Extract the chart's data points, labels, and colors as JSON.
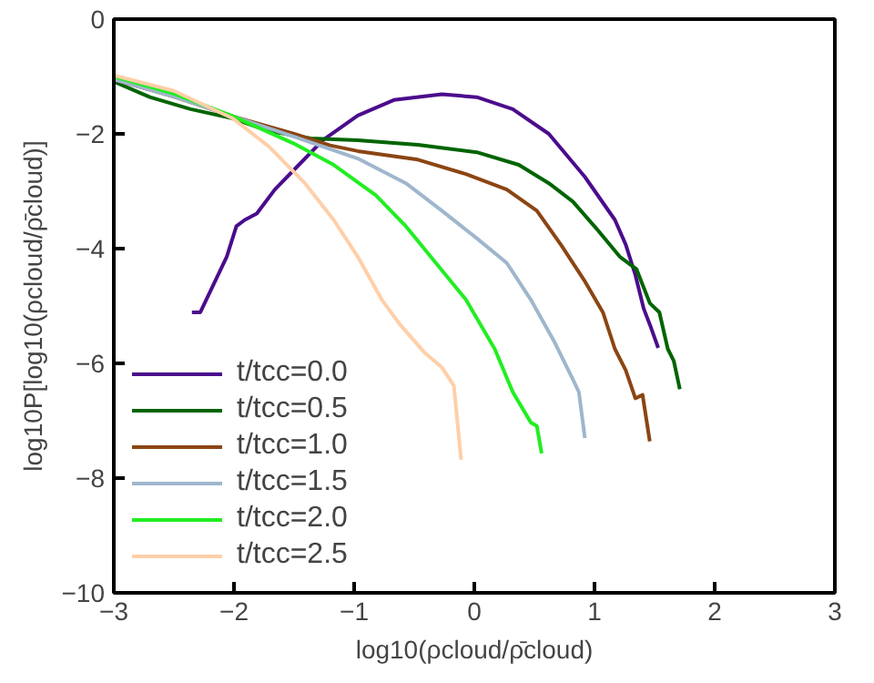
{
  "chart_data": {
    "type": "line",
    "xlabel": "log10(ρcloud/ρ̄cloud)",
    "ylabel": "log10P[log10(ρcloud/ρ̄cloud)]",
    "xlim": [
      -3,
      3
    ],
    "ylim": [
      -10,
      0
    ],
    "xticks": [
      -3,
      -2,
      -1,
      0,
      1,
      2,
      3
    ],
    "yticks": [
      -10,
      -8,
      -6,
      -4,
      -2,
      0
    ],
    "grid": false,
    "legend": "bottom left",
    "line_style": "solid",
    "series": [
      {
        "name": "t/tcc=0.0",
        "color": "#4b0c8c",
        "x": [
          -2.35,
          -2.28,
          -2.06,
          -1.98,
          -1.91,
          -1.81,
          -1.66,
          -1.46,
          -1.26,
          -0.97,
          -0.67,
          -0.27,
          0.02,
          0.32,
          0.62,
          0.92,
          1.17,
          1.26,
          1.34,
          1.41,
          1.46,
          1.53
        ],
        "values": [
          -5.11,
          -5.11,
          -4.14,
          -3.61,
          -3.5,
          -3.39,
          -2.97,
          -2.54,
          -2.11,
          -1.68,
          -1.41,
          -1.31,
          -1.36,
          -1.57,
          -2.0,
          -2.75,
          -3.5,
          -3.93,
          -4.46,
          -5.05,
          -5.32,
          -5.73
        ]
      },
      {
        "name": "t/tcc=0.5",
        "color": "#006400",
        "x": [
          -3,
          -2.7,
          -2.36,
          -2.01,
          -1.71,
          -1.36,
          -0.97,
          -0.47,
          0.02,
          0.37,
          0.62,
          0.82,
          1.02,
          1.21,
          1.35,
          1.46,
          1.54,
          1.61,
          1.66,
          1.71
        ],
        "values": [
          -1.09,
          -1.36,
          -1.57,
          -1.73,
          -1.95,
          -2.08,
          -2.11,
          -2.19,
          -2.32,
          -2.54,
          -2.86,
          -3.18,
          -3.66,
          -4.14,
          -4.36,
          -4.95,
          -5.11,
          -5.75,
          -5.96,
          -6.45
        ]
      },
      {
        "name": "t/tcc=1.0",
        "color": "#8b4513",
        "x": [
          -3,
          -2.5,
          -2,
          -1.5,
          -1.2,
          -0.97,
          -0.47,
          -0.07,
          0.27,
          0.52,
          0.72,
          0.92,
          1.07,
          1.17,
          1.26,
          1.34,
          1.4,
          1.46
        ],
        "values": [
          -1.05,
          -1.35,
          -1.7,
          -2.0,
          -2.2,
          -2.3,
          -2.45,
          -2.7,
          -2.97,
          -3.34,
          -3.93,
          -4.57,
          -5.11,
          -5.75,
          -6.12,
          -6.61,
          -6.55,
          -7.36
        ]
      },
      {
        "name": "t/tcc=1.5",
        "color": "#9fb6cd",
        "x": [
          -3,
          -2.5,
          -2,
          -1.5,
          -0.97,
          -0.57,
          -0.27,
          0.02,
          0.27,
          0.47,
          0.67,
          0.82,
          0.87,
          0.92
        ],
        "values": [
          -1.05,
          -1.35,
          -1.7,
          -2.05,
          -2.43,
          -2.86,
          -3.34,
          -3.82,
          -4.25,
          -4.89,
          -5.64,
          -6.28,
          -6.5,
          -7.3
        ]
      },
      {
        "name": "t/tcc=2.0",
        "color": "#22ee22",
        "x": [
          -3,
          -2.5,
          -2,
          -1.51,
          -1.17,
          -0.82,
          -0.57,
          -0.32,
          -0.07,
          0.17,
          0.32,
          0.47,
          0.52,
          0.56
        ],
        "values": [
          -1.0,
          -1.3,
          -1.7,
          -2.16,
          -2.54,
          -3.07,
          -3.61,
          -4.25,
          -4.89,
          -5.75,
          -6.5,
          -7.03,
          -7.09,
          -7.57
        ]
      },
      {
        "name": "t/tcc=2.5",
        "color": "#ffcfa8",
        "x": [
          -3,
          -2.5,
          -2.01,
          -1.71,
          -1.41,
          -1.17,
          -0.97,
          -0.77,
          -0.62,
          -0.42,
          -0.27,
          -0.17,
          -0.11
        ],
        "values": [
          -0.98,
          -1.25,
          -1.73,
          -2.22,
          -2.86,
          -3.5,
          -4.14,
          -4.89,
          -5.32,
          -5.8,
          -6.07,
          -6.39,
          -7.68
        ]
      }
    ]
  }
}
